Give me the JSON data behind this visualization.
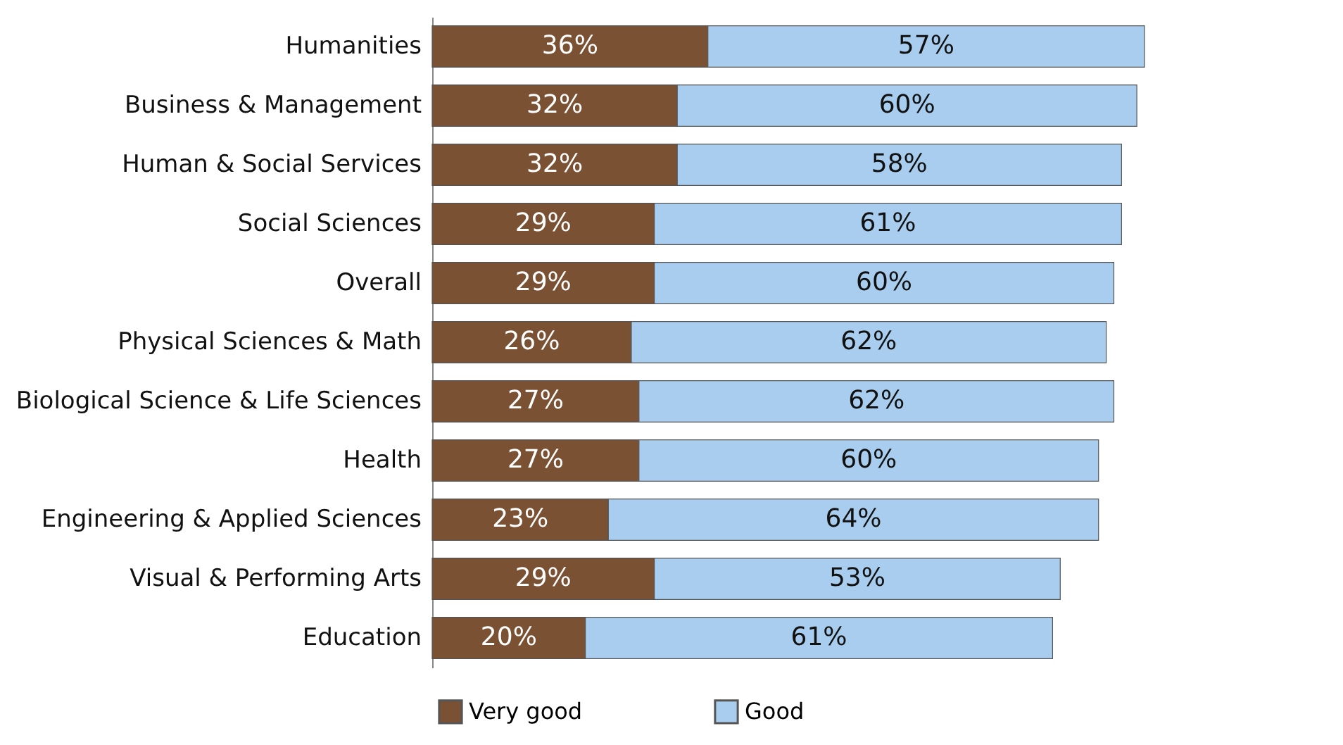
{
  "chart_data": {
    "type": "bar",
    "orientation": "horizontal",
    "stacked": true,
    "legend": "bottom",
    "grid": false,
    "categories": [
      "Humanities",
      "Business & Management",
      "Human & Social Services",
      "Social Sciences",
      "Overall",
      "Physical Sciences & Math",
      "Biological Science & Life Sciences",
      "Health",
      "Engineering & Applied Sciences",
      "Visual & Performing Arts",
      "Education"
    ],
    "series": [
      {
        "name": "Very good",
        "color": "#7b5134",
        "values": [
          36,
          32,
          32,
          29,
          29,
          26,
          27,
          27,
          23,
          29,
          20
        ],
        "value_labels": [
          "36%",
          "32%",
          "32%",
          "29%",
          "29%",
          "26%",
          "27%",
          "27%",
          "23%",
          "29%",
          "20%"
        ]
      },
      {
        "name": "Good",
        "color": "#a8cdee",
        "values": [
          57,
          60,
          58,
          61,
          60,
          62,
          62,
          60,
          64,
          53,
          61
        ],
        "value_labels": [
          "57%",
          "60%",
          "58%",
          "61%",
          "60%",
          "62%",
          "62%",
          "60%",
          "64%",
          "53%",
          "61%"
        ]
      }
    ]
  }
}
